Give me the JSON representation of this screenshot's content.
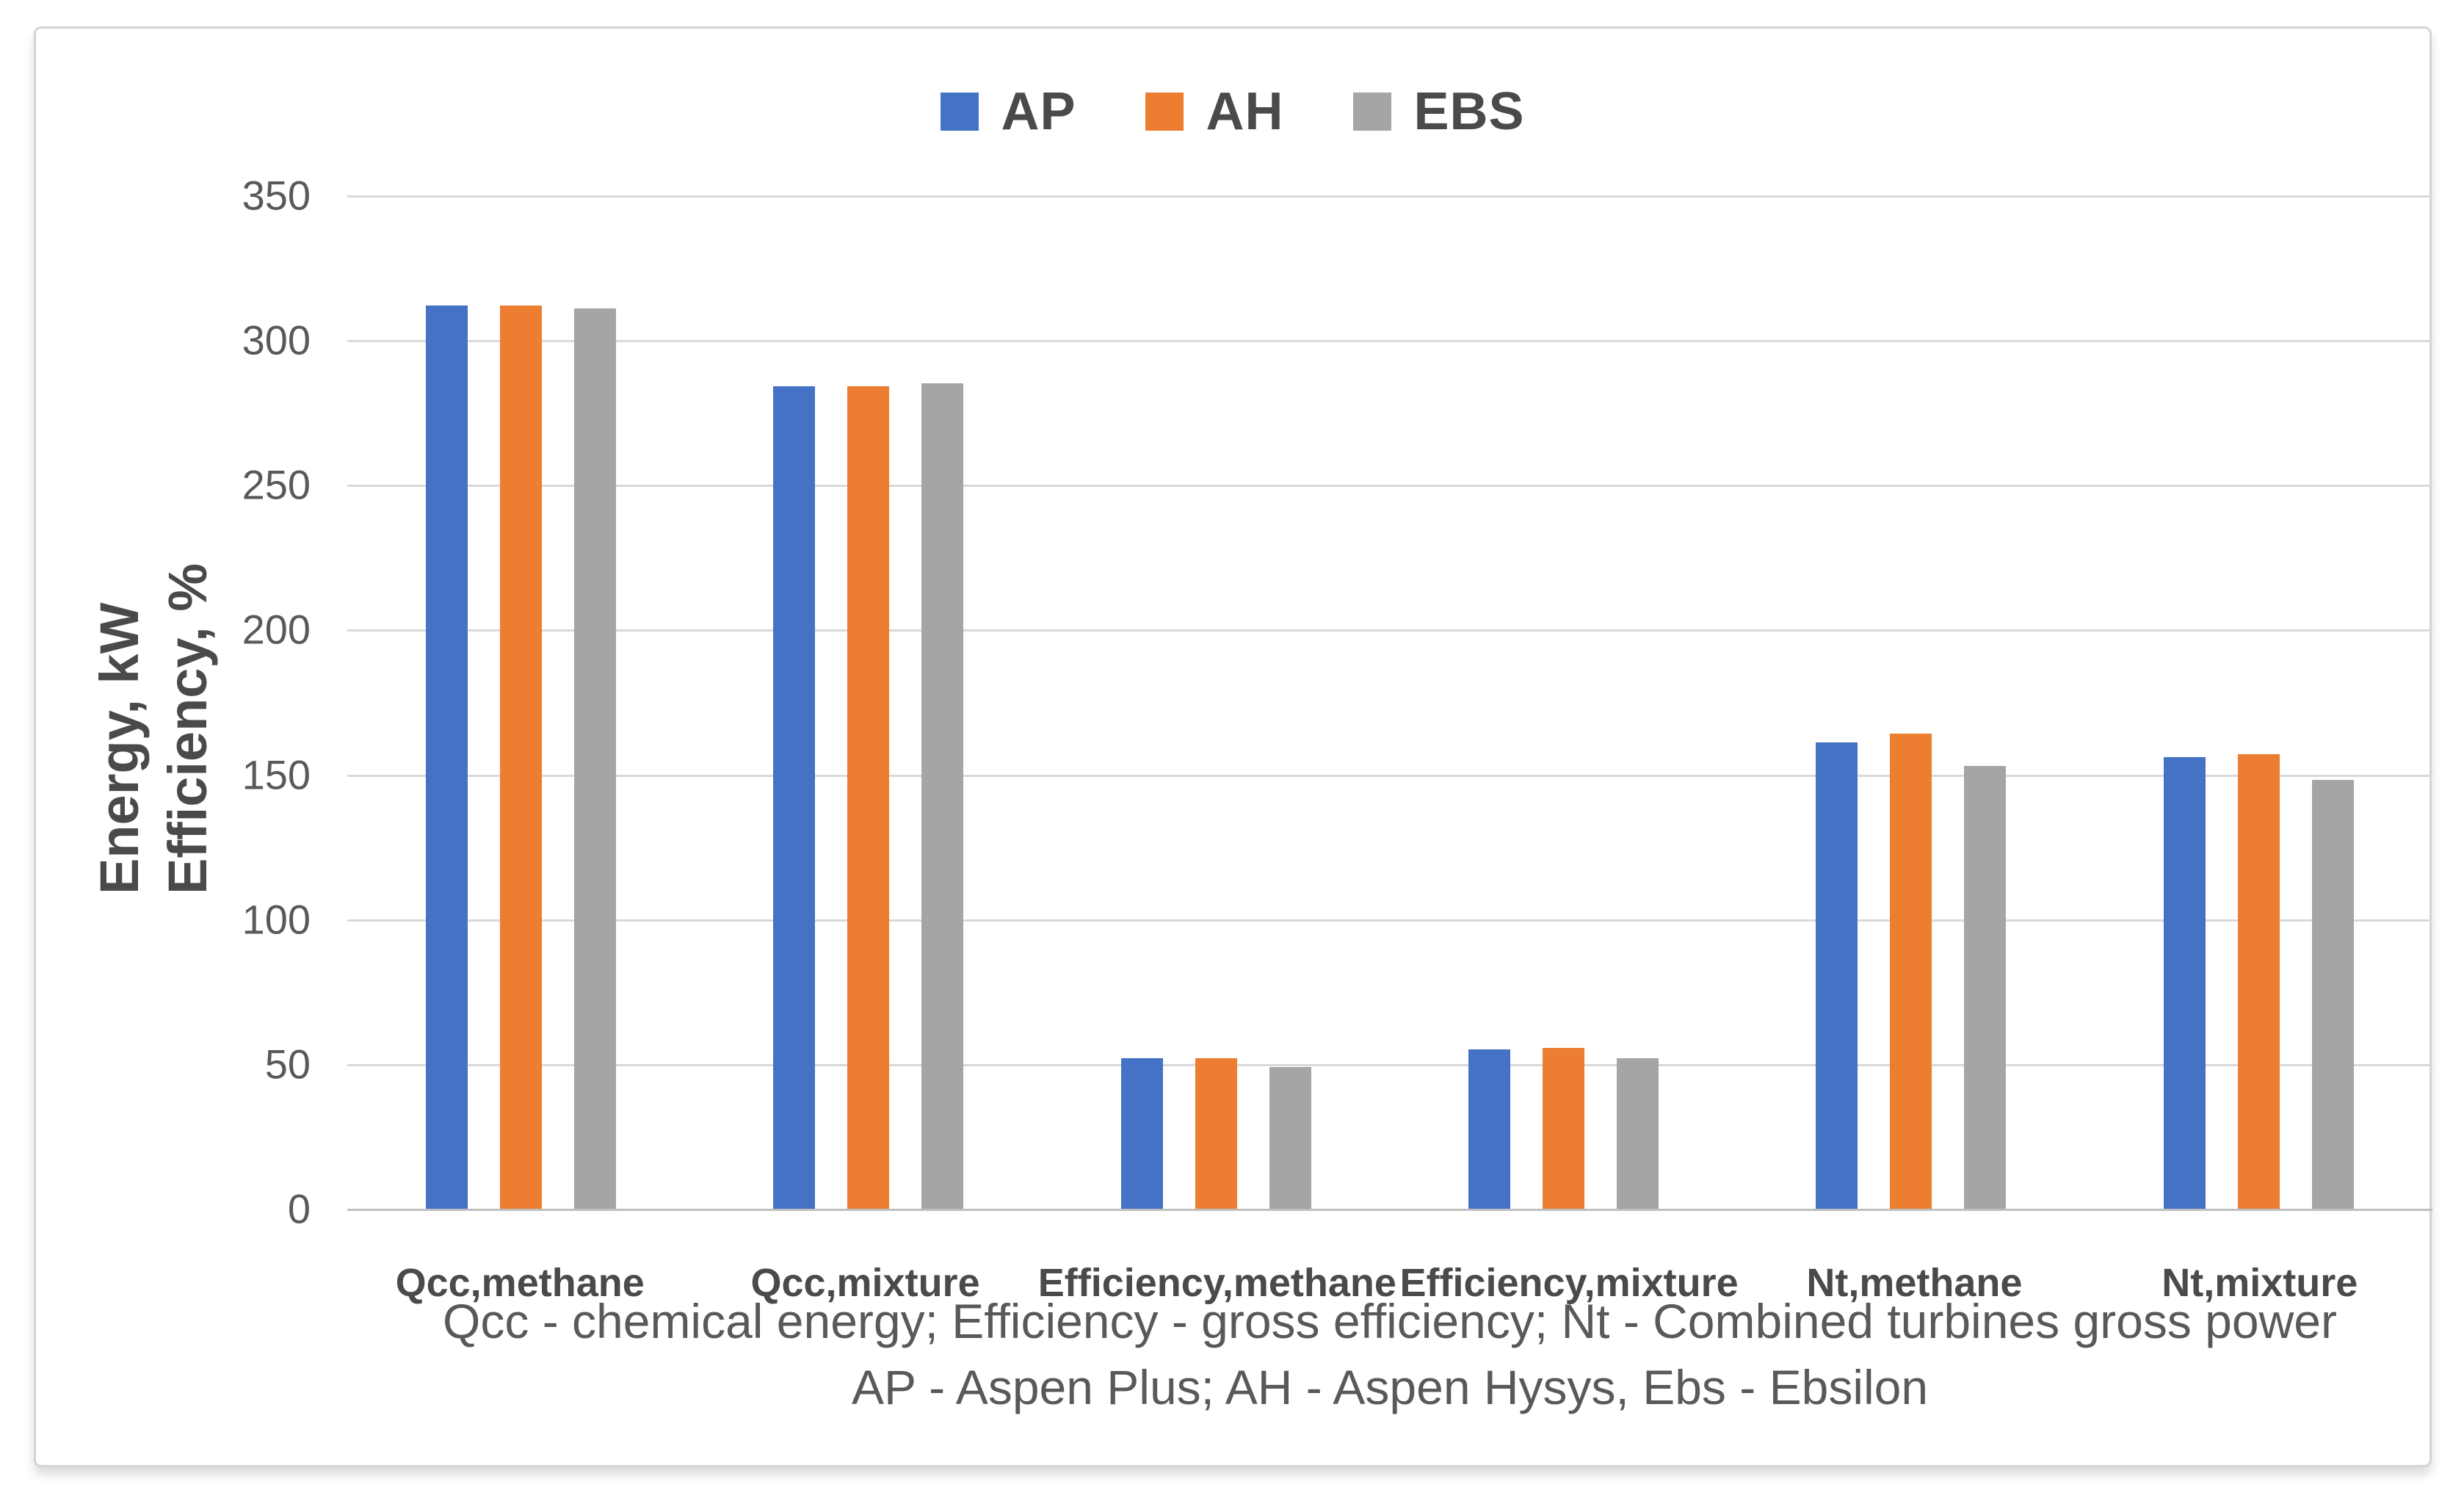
{
  "chart_data": {
    "type": "bar",
    "title": "",
    "categories": [
      "Qcc,methane",
      "Qcc,mixture",
      "Efficiency,methane",
      "Efficiency,mixture",
      "Nt,methane",
      "Nt,mixture"
    ],
    "series": [
      {
        "name": "AP",
        "color": "#4472C4",
        "values": [
          312,
          284,
          52,
          55,
          161,
          156
        ]
      },
      {
        "name": "AH",
        "color": "#ED7D31",
        "values": [
          312,
          284,
          52,
          55.5,
          164,
          157
        ]
      },
      {
        "name": "EBS",
        "color": "#A5A5A5",
        "values": [
          311,
          285,
          49,
          52,
          153,
          148
        ]
      }
    ],
    "ylabel_line1": "Energy, kW",
    "ylabel_line2": "Efficiency, %",
    "xlabel": "",
    "ylim": [
      0,
      350
    ],
    "ytick_step": 50,
    "yticks": [
      0,
      50,
      100,
      150,
      200,
      250,
      300,
      350
    ],
    "grid": true,
    "legend_position": "top",
    "gridline_color": "#D9D9D9",
    "axis_line_color": "#BFBFBF",
    "footnotes": [
      "Qcc - chemical energy; Efficiency - gross efficiency; Nt - Combined turbines gross power",
      "AP - Aspen Plus; AH - Aspen Hysys, Ebs - Ebsilon"
    ]
  }
}
